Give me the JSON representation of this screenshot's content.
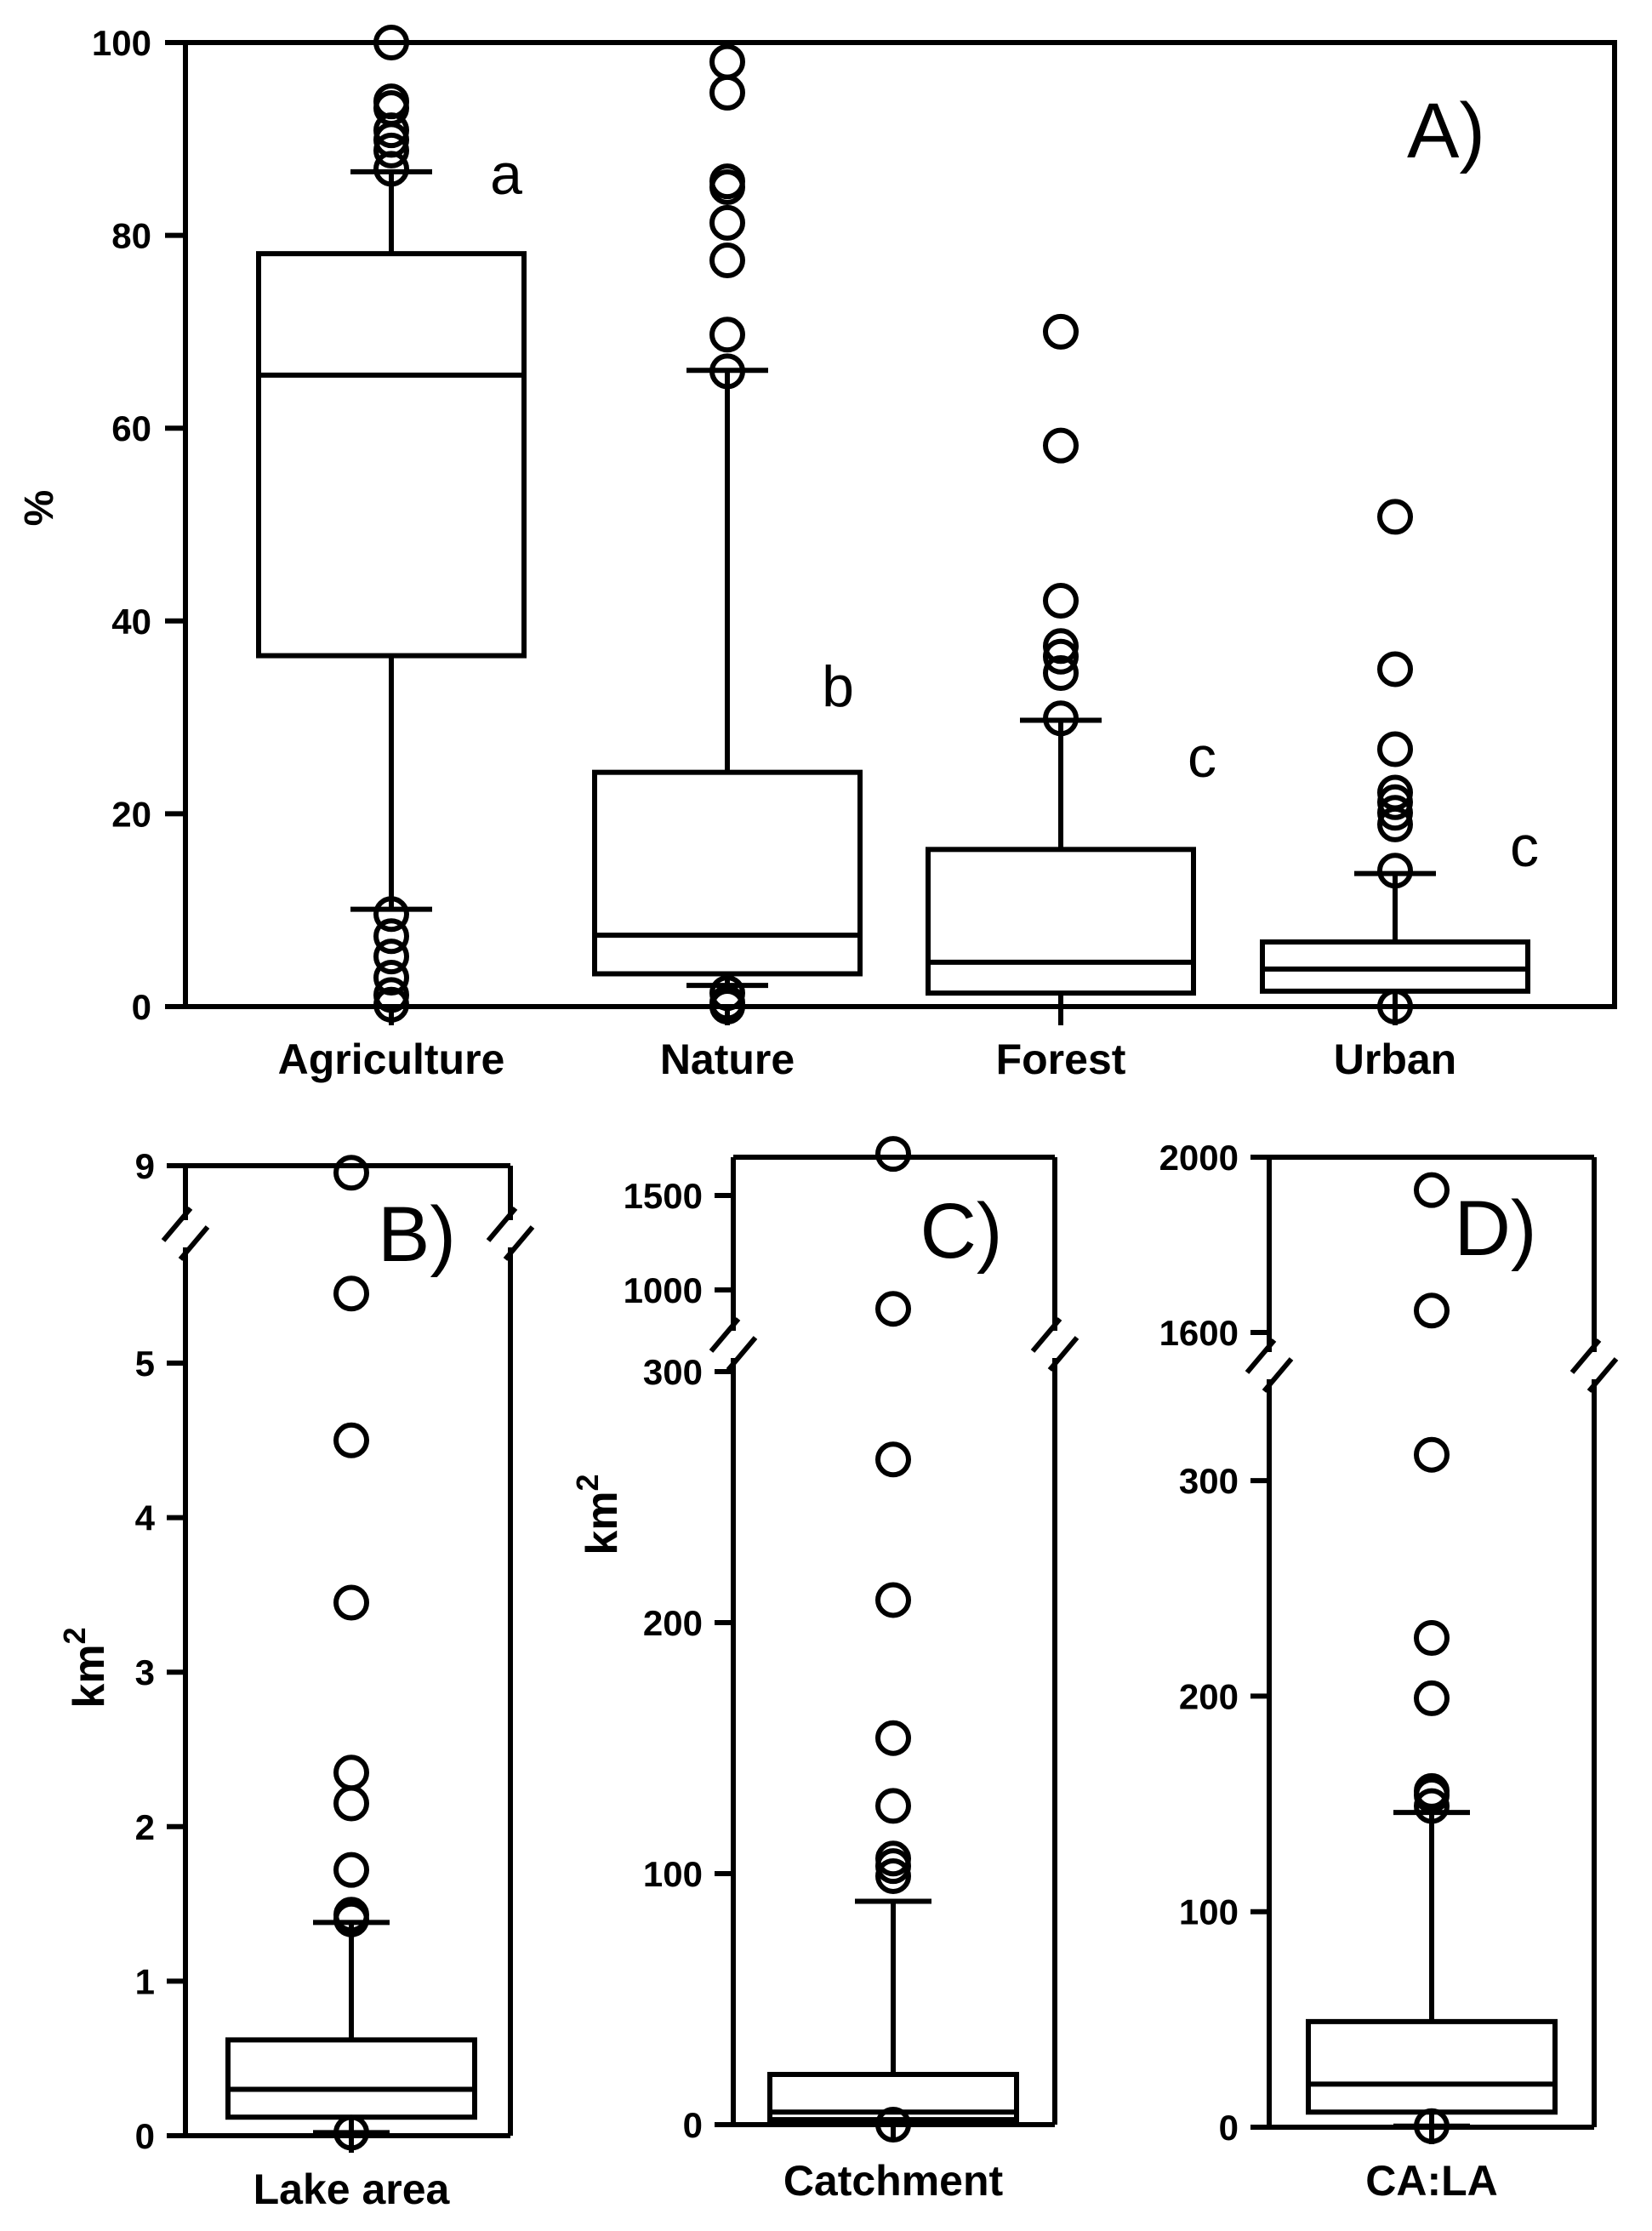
{
  "chart_data": [
    {
      "panel": "A)",
      "type": "box",
      "ylabel": "%",
      "ylim": [
        0,
        100
      ],
      "yticks": [
        "0",
        "20",
        "40",
        "60",
        "80",
        "100"
      ],
      "categories": [
        "Agriculture",
        "Nature",
        "Forest",
        "Urban"
      ],
      "boxes": [
        {
          "category": "Agriculture",
          "q1": 36.4,
          "median": 65.5,
          "q3": 78.1,
          "whisker_low": 10.1,
          "whisker_high": 86.6,
          "outliers": [
            100,
            93.9,
            93.2,
            90.9,
            89.9,
            88.8,
            86.9,
            9.6,
            7.3,
            5.2,
            3.0,
            1.2,
            0.2
          ],
          "letter": "a"
        },
        {
          "category": "Nature",
          "q1": 3.4,
          "median": 7.4,
          "q3": 24.3,
          "whisker_low": 2.2,
          "whisker_high": 66.0,
          "outliers": [
            98.0,
            94.8,
            85.6,
            85.0,
            81.3,
            77.4,
            69.7,
            65.9,
            1.4,
            0.4,
            0.0
          ],
          "letter": "b"
        },
        {
          "category": "Forest",
          "q1": 1.4,
          "median": 4.6,
          "q3": 16.3,
          "whisker_low": 0.0,
          "whisker_high": 29.7,
          "outliers": [
            70.0,
            58.2,
            42.1,
            37.4,
            36.3,
            34.6,
            29.9
          ],
          "letter": "c"
        },
        {
          "category": "Urban",
          "q1": 1.6,
          "median": 3.9,
          "q3": 6.7,
          "whisker_low": 0.0,
          "whisker_high": 13.8,
          "outliers": [
            50.8,
            35.0,
            26.7,
            22.2,
            21.2,
            20.1,
            18.9,
            14.1,
            0.0
          ],
          "letter": "c"
        }
      ]
    },
    {
      "panel": "B)",
      "type": "box",
      "ylabel": "km",
      "ylabel_sup": "2",
      "yticks_lower": [
        "0",
        "1",
        "2",
        "3",
        "4",
        "5"
      ],
      "yticks_upper": [
        "9"
      ],
      "category": "Lake area",
      "box": {
        "q1": 0.12,
        "median": 0.3,
        "q3": 0.62,
        "whisker_low": 0.02,
        "whisker_high": 1.38,
        "outliers": [
          8.85,
          5.45,
          4.5,
          3.45,
          2.35,
          2.15,
          1.72,
          1.43,
          1.4,
          0.02
        ]
      }
    },
    {
      "panel": "C)",
      "type": "box",
      "ylabel": "km",
      "ylabel_sup": "2",
      "yticks_lower": [
        "0",
        "100",
        "200",
        "300"
      ],
      "yticks_upper": [
        "1000",
        "1500"
      ],
      "category": "Catchment",
      "box": {
        "q1": 2.0,
        "median": 5.0,
        "q3": 20.0,
        "whisker_low": 0.0,
        "whisker_high": 89.0,
        "outliers": [
          1720,
          900,
          265,
          209,
          154,
          127,
          106,
          103,
          99,
          0.0
        ]
      }
    },
    {
      "panel": "D)",
      "type": "box",
      "ylabel": "",
      "yticks_lower": [
        "0",
        "100",
        "200",
        "300"
      ],
      "yticks_upper": [
        "1600",
        "2000"
      ],
      "category": "CA:LA",
      "box": {
        "q1": 7.0,
        "median": 20.0,
        "q3": 49.0,
        "whisker_low": 0.5,
        "whisker_high": 146.0,
        "outliers": [
          1925,
          1650,
          312,
          227,
          199,
          156,
          154,
          149,
          0.5
        ]
      }
    }
  ]
}
